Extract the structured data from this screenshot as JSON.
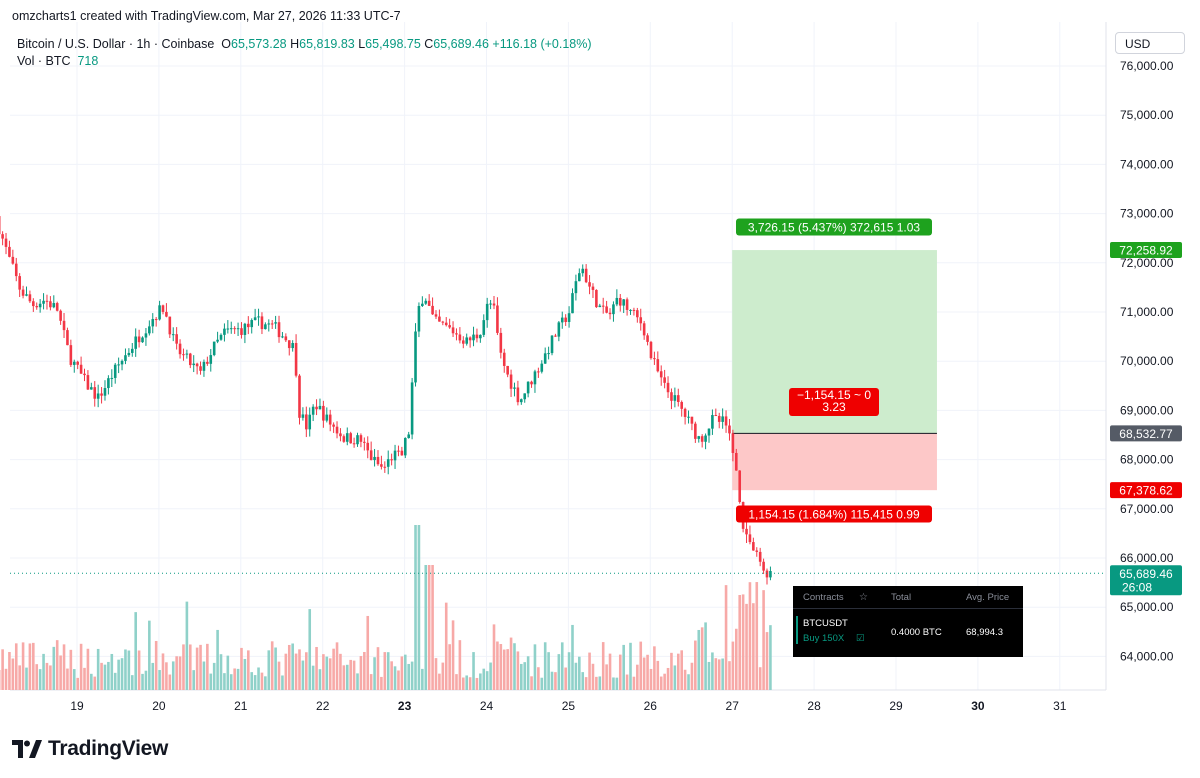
{
  "header": {
    "attribution": "omzcharts1 created with TradingView.com, Mar 27, 2026 11:33 UTC-7",
    "symbol": "Bitcoin / U.S. Dollar · 1h · Coinbase",
    "o_label": "O",
    "o_value": "65,573.28",
    "h_label": "H",
    "h_value": "65,819.83",
    "l_label": "L",
    "l_value": "65,498.75",
    "c_label": "C",
    "c_value": "65,689.46",
    "change": "+116.18 (+0.18%)",
    "vol_label": "Vol · BTC",
    "vol_value": "718"
  },
  "currency": "USD",
  "colors": {
    "up": "#089981",
    "down": "#f23645",
    "up_vol": "#8fd1c9",
    "down_vol": "#f7a9a7",
    "target_fill": "#cdeccd",
    "stop_fill": "#fdc8c8",
    "target_label": "#1ea21e"
  },
  "chart_data": {
    "type": "candlestick",
    "symbol": "Bitcoin / U.S. Dollar",
    "timeframe": "1h",
    "x_labels": [
      "19",
      "20",
      "21",
      "22",
      "23",
      "24",
      "25",
      "26",
      "27",
      "28",
      "29",
      "30",
      "31"
    ],
    "y_labels": [
      "76,000.00",
      "75,000.00",
      "74,000.00",
      "73,000.00",
      "72,000.00",
      "71,000.00",
      "70,000.00",
      "69,000.00",
      "68,000.00",
      "67,000.00",
      "66,000.00",
      "65,000.00",
      "64,000.00"
    ],
    "ylim": [
      63300,
      76400
    ],
    "xlim": [
      18.05,
      31.6
    ],
    "close_path": [
      [
        18.05,
        72950
      ],
      [
        18.12,
        72550
      ],
      [
        18.22,
        72050
      ],
      [
        18.35,
        71450
      ],
      [
        18.5,
        71150
      ],
      [
        18.65,
        71250
      ],
      [
        18.8,
        71050
      ],
      [
        18.95,
        70100
      ],
      [
        19.15,
        69550
      ],
      [
        19.3,
        69250
      ],
      [
        19.5,
        69800
      ],
      [
        19.75,
        70400
      ],
      [
        20.0,
        70950
      ],
      [
        20.1,
        71100
      ],
      [
        20.25,
        70250
      ],
      [
        20.4,
        70000
      ],
      [
        20.55,
        69750
      ],
      [
        20.7,
        70250
      ],
      [
        20.85,
        70600
      ],
      [
        21.05,
        70650
      ],
      [
        21.25,
        70800
      ],
      [
        21.45,
        70700
      ],
      [
        21.6,
        70450
      ],
      [
        21.7,
        70250
      ],
      [
        21.75,
        69000
      ],
      [
        21.85,
        68650
      ],
      [
        21.95,
        69150
      ],
      [
        22.1,
        68800
      ],
      [
        22.3,
        68450
      ],
      [
        22.5,
        68400
      ],
      [
        22.65,
        68000
      ],
      [
        22.78,
        67800
      ],
      [
        22.9,
        68100
      ],
      [
        23.0,
        68050
      ],
      [
        23.05,
        68350
      ],
      [
        23.1,
        68600
      ],
      [
        23.15,
        70000
      ],
      [
        23.2,
        71000
      ],
      [
        23.28,
        71400
      ],
      [
        23.4,
        70800
      ],
      [
        23.6,
        70650
      ],
      [
        23.8,
        70400
      ],
      [
        23.95,
        70550
      ],
      [
        24.05,
        71100
      ],
      [
        24.12,
        71200
      ],
      [
        24.2,
        70200
      ],
      [
        24.3,
        69700
      ],
      [
        24.45,
        69200
      ],
      [
        24.6,
        69650
      ],
      [
        24.75,
        70100
      ],
      [
        24.9,
        70600
      ],
      [
        25.05,
        71000
      ],
      [
        25.15,
        71700
      ],
      [
        25.2,
        71950
      ],
      [
        25.3,
        71500
      ],
      [
        25.45,
        71000
      ],
      [
        25.55,
        70950
      ],
      [
        25.65,
        71300
      ],
      [
        25.8,
        71000
      ],
      [
        25.95,
        70750
      ],
      [
        26.05,
        70100
      ],
      [
        26.2,
        69500
      ],
      [
        26.3,
        69300
      ],
      [
        26.45,
        68950
      ],
      [
        26.55,
        68650
      ],
      [
        26.65,
        68400
      ],
      [
        26.8,
        68800
      ],
      [
        26.95,
        68750
      ],
      [
        27.0,
        68550
      ],
      [
        27.1,
        67700
      ],
      [
        27.18,
        66600
      ],
      [
        27.25,
        66350
      ],
      [
        27.35,
        66000
      ],
      [
        27.42,
        65750
      ],
      [
        27.48,
        65689
      ]
    ],
    "current_price": "65,689.46",
    "countdown": "26:08",
    "volume_axis_label": "",
    "position": {
      "type": "long",
      "entry": 68532.77,
      "target": 72258.92,
      "stop": 67378.62,
      "start_x": 27.0,
      "end_x": 29.5,
      "entry_label": "68,532.77",
      "target_price_label": "72,258.92",
      "stop_price_label": "67,378.62",
      "target_text": "3,726.15 (5.437%) 372,615 1.03",
      "stop_text": "1,154.15 (1.684%) 115,415 0.99",
      "pnl_line1": "−1,154.15 ~ 0",
      "pnl_line2": "3.23"
    }
  },
  "positions_panel": {
    "col_contracts": "Contracts",
    "col_total": "Total",
    "col_avg_price": "Avg. Price",
    "symbol": "BTCUSDT",
    "side": "Buy 150X",
    "total": "0.4000 BTC",
    "avg_price": "68,994.3"
  },
  "footer": {
    "logo_text": "TradingView"
  }
}
